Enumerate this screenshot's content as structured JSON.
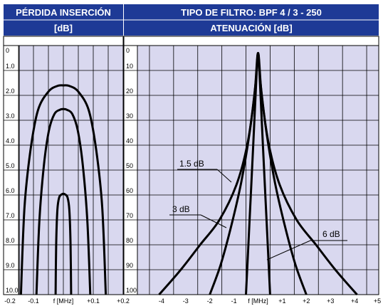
{
  "colors": {
    "header_bg": "#1e3a96",
    "panel_bg": "#d9d8ef",
    "grid": "#000000",
    "curve": "#000000",
    "header_text": "#ffffff"
  },
  "header": {
    "left_line1": "PÉRDIDA INSERCIÓN",
    "left_line2": "[dB]",
    "right_line1": "TIPO DE FILTRO:  BPF 4 / 3 - 250",
    "right_line2": "ATENUACIÓN  [dB]"
  },
  "chart_data": [
    {
      "type": "line",
      "title": "PÉRDIDA INSERCIÓN",
      "ylabel": "[dB]",
      "xlabel": "f [MHz]",
      "xlim": [
        -0.2,
        0.2
      ],
      "ylim": [
        0,
        10
      ],
      "y_inverted": true,
      "grid": true,
      "x_tick_labels": [
        "-0.2",
        "-0.1",
        "f [MHz]",
        "+0.1",
        "+0.2"
      ],
      "x_tick_values": [
        -0.2,
        -0.1,
        0,
        0.1,
        0.2
      ],
      "y_tick_labels": [
        "0",
        "1.0",
        "2.0",
        "3.0",
        "4.0",
        "5.0",
        "6.0",
        "7.0",
        "8.0",
        "9.0",
        "10.0"
      ],
      "series": [
        {
          "x": [
            -0.142,
            -0.13,
            -0.11,
            -0.085,
            -0.05,
            -0.02,
            0,
            0.02,
            0.05,
            0.085,
            0.11,
            0.13,
            0.142
          ],
          "y": [
            10,
            6.5,
            4.2,
            2.6,
            1.85,
            1.62,
            1.6,
            1.62,
            1.85,
            2.6,
            4.2,
            6.5,
            10
          ]
        },
        {
          "x": [
            -0.09,
            -0.08,
            -0.065,
            -0.048,
            -0.03,
            -0.012,
            0,
            0.012,
            0.03,
            0.048,
            0.065,
            0.08,
            0.09
          ],
          "y": [
            10,
            7.0,
            4.8,
            3.4,
            2.75,
            2.58,
            2.55,
            2.58,
            2.75,
            3.4,
            4.8,
            7.0,
            10
          ]
        },
        {
          "x": [
            -0.026,
            -0.024,
            -0.02,
            -0.014,
            -0.006,
            0,
            0.006,
            0.014,
            0.02,
            0.024,
            0.026
          ],
          "y": [
            10,
            8.0,
            6.6,
            6.1,
            5.98,
            5.95,
            5.98,
            6.1,
            6.6,
            8.0,
            10
          ]
        }
      ]
    },
    {
      "type": "line",
      "title": "TIPO DE FILTRO:  BPF 4 / 3 - 250",
      "ylabel": "ATENUACIÓN  [dB]",
      "xlabel": "f [MHz]",
      "xlim": [
        -5,
        5
      ],
      "ylim": [
        0,
        100
      ],
      "y_inverted": true,
      "grid": true,
      "x_tick_labels": [
        "-4",
        "-3",
        "-2",
        "-1",
        "f [MHz]",
        "+1",
        "+2",
        "+3",
        "+4",
        "+5"
      ],
      "x_tick_values": [
        -4,
        -3,
        -2,
        -1,
        0,
        1,
        2,
        3,
        4,
        5
      ],
      "y_tick_labels": [
        "0",
        "10",
        "20",
        "30",
        "40",
        "50",
        "60",
        "70",
        "80",
        "90",
        "100"
      ],
      "series": [
        {
          "name": "1.5 dB",
          "x": [
            -4.1,
            -3.2,
            -2.4,
            -1.6,
            -0.9,
            -0.45,
            -0.15,
            0,
            0.15,
            0.45,
            0.9,
            1.6,
            2.4,
            3.2,
            4.1
          ],
          "y": [
            100,
            90,
            80,
            70,
            56,
            40,
            20,
            3,
            20,
            40,
            56,
            70,
            80,
            90,
            100
          ]
        },
        {
          "name": "3 dB",
          "x": [
            -2.0,
            -1.55,
            -1.1,
            -0.7,
            -0.35,
            -0.1,
            0,
            0.1,
            0.35,
            0.7,
            1.1,
            1.55,
            2.0
          ],
          "y": [
            100,
            88,
            72,
            55,
            35,
            15,
            3,
            15,
            35,
            55,
            72,
            88,
            100
          ]
        },
        {
          "name": "6 dB",
          "x": [
            -0.5,
            -0.35,
            -0.2,
            -0.08,
            0,
            0.08,
            0.2,
            0.35,
            0.5
          ],
          "y": [
            100,
            70,
            40,
            15,
            3,
            15,
            40,
            70,
            100
          ]
        }
      ],
      "annotations": [
        "1.5 dB",
        "3 dB",
        "6 dB"
      ]
    }
  ]
}
